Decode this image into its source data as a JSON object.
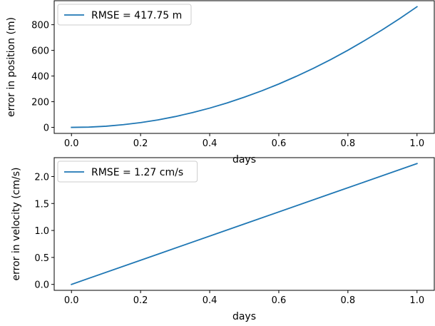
{
  "chart_data": [
    {
      "type": "line",
      "xlabel": "days",
      "ylabel": "error in position (m)",
      "xlim": [
        -0.05,
        1.05
      ],
      "ylim": [
        -47,
        987
      ],
      "xticks": [
        0.0,
        0.2,
        0.4,
        0.6,
        0.8,
        1.0
      ],
      "xtick_labels": [
        "0.0",
        "0.2",
        "0.4",
        "0.6",
        "0.8",
        "1.0"
      ],
      "yticks": [
        0,
        200,
        400,
        600,
        800
      ],
      "ytick_labels": [
        "0",
        "200",
        "400",
        "600",
        "800"
      ],
      "grid": false,
      "legend_position": "upper left",
      "series": [
        {
          "name": "RMSE = 417.75 m",
          "color": "#1f77b4",
          "x": [
            0.0,
            0.05,
            0.1,
            0.15,
            0.2,
            0.25,
            0.3,
            0.35,
            0.4,
            0.45,
            0.5,
            0.55,
            0.6,
            0.65,
            0.7,
            0.75,
            0.8,
            0.85,
            0.9,
            0.95,
            1.0
          ],
          "y": [
            0,
            2,
            9,
            21,
            37,
            58,
            84,
            115,
            150,
            190,
            235,
            284,
            338,
            397,
            460,
            528,
            601,
            679,
            761,
            848,
            940
          ]
        }
      ]
    },
    {
      "type": "line",
      "xlabel": "days",
      "ylabel": "error in velocity (cm/s)",
      "xlim": [
        -0.05,
        1.05
      ],
      "ylim": [
        -0.11,
        2.35
      ],
      "xticks": [
        0.0,
        0.2,
        0.4,
        0.6,
        0.8,
        1.0
      ],
      "xtick_labels": [
        "0.0",
        "0.2",
        "0.4",
        "0.6",
        "0.8",
        "1.0"
      ],
      "yticks": [
        0.0,
        0.5,
        1.0,
        1.5,
        2.0
      ],
      "ytick_labels": [
        "0.0",
        "0.5",
        "1.0",
        "1.5",
        "2.0"
      ],
      "grid": false,
      "legend_position": "upper left",
      "series": [
        {
          "name": "RMSE = 1.27 cm/s",
          "color": "#1f77b4",
          "x": [
            0.0,
            0.25,
            0.5,
            0.75,
            1.0
          ],
          "y": [
            0.0,
            0.56,
            1.12,
            1.68,
            2.24
          ]
        }
      ]
    }
  ]
}
